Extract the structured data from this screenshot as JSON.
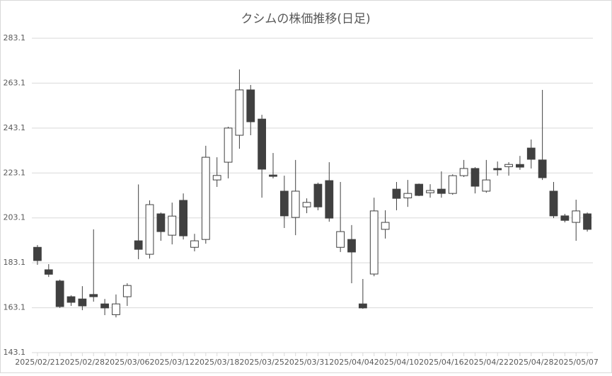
{
  "chart_data": {
    "type": "candlestick",
    "title": "クシムの株価推移(日足)",
    "categories": [
      "2025/02/21",
      null,
      null,
      null,
      "2025/02/28",
      null,
      null,
      null,
      "2025/03/06",
      null,
      null,
      null,
      "2025/03/12",
      null,
      null,
      null,
      "2025/03/18",
      null,
      null,
      null,
      "2025/03/25",
      null,
      null,
      null,
      "2025/03/31",
      null,
      null,
      null,
      "2025/04/04",
      null,
      null,
      null,
      "2025/04/10",
      null,
      null,
      null,
      "2025/04/16",
      null,
      null,
      null,
      "2025/04/22",
      null,
      null,
      null,
      "2025/04/28",
      null,
      null,
      null,
      "2025/05/07",
      null
    ],
    "open": [
      190,
      180,
      175,
      168,
      167,
      169,
      164.8,
      160,
      168,
      192.9,
      186.9,
      204.9,
      195.4,
      210.9,
      190,
      193.5,
      220,
      227.9,
      239.9,
      260.1,
      247.1,
      222.2,
      215,
      203.3,
      208,
      218.1,
      219.7,
      190,
      193.5,
      164.8,
      178.1,
      198,
      215.9,
      212,
      218.1,
      214.3,
      215.9,
      214,
      221.9,
      225.1,
      215,
      225.1,
      225.9,
      226.9,
      234.2,
      228.9,
      215,
      204,
      201.1,
      204.9
    ],
    "high": [
      191,
      182.5,
      175.6,
      168.6,
      172.7,
      198,
      167,
      169,
      174,
      218,
      210.9,
      205.5,
      209.9,
      214,
      196,
      235.2,
      230.1,
      243.7,
      269.2,
      262.3,
      249,
      232,
      221.9,
      228.9,
      211.8,
      218.8,
      227.9,
      219.1,
      199.9,
      175.9,
      212.1,
      206.5,
      219.1,
      220,
      218.4,
      218.1,
      223.8,
      222.5,
      228.9,
      225.7,
      228.9,
      228.2,
      227.9,
      230.7,
      238,
      260.1,
      219.1,
      204.9,
      211.2,
      205.5
    ],
    "low": [
      182.2,
      176.8,
      163,
      163.9,
      162,
      165.8,
      159.8,
      158.8,
      163.9,
      184.7,
      185,
      192.9,
      191.3,
      193.5,
      188.2,
      191.6,
      216.9,
      220.7,
      233.9,
      239.9,
      212.1,
      220.7,
      198.6,
      195.4,
      205.2,
      206.5,
      201.4,
      187.9,
      174,
      162.6,
      177.1,
      193.9,
      206.5,
      208,
      212.8,
      212.1,
      212.1,
      213.4,
      221.3,
      214,
      214.3,
      221.9,
      221.9,
      224.5,
      225.1,
      220,
      203,
      201.1,
      192.9,
      197
    ],
    "close": [
      184.1,
      178,
      163.6,
      165.5,
      163.9,
      168,
      163,
      164.8,
      173,
      189.1,
      209,
      197,
      203.9,
      195.1,
      192.9,
      230.1,
      222,
      243.1,
      260.1,
      245.9,
      224.8,
      221.6,
      204,
      215,
      210,
      208,
      203,
      197,
      187.9,
      163,
      206.2,
      201.1,
      211.8,
      214,
      213.1,
      215.3,
      214,
      221.9,
      225.1,
      217.2,
      220,
      224.5,
      226.9,
      225.7,
      229.2,
      221,
      204,
      202,
      206.2,
      198
    ],
    "up_color": "#ffffff",
    "down_color": "#404040",
    "line_color": "#404040",
    "ylim": [
      143.1,
      283.1
    ],
    "yticks": [
      143.1,
      163.1,
      183.1,
      203.1,
      223.1,
      243.1,
      263.1,
      283.1
    ],
    "grid": true
  }
}
